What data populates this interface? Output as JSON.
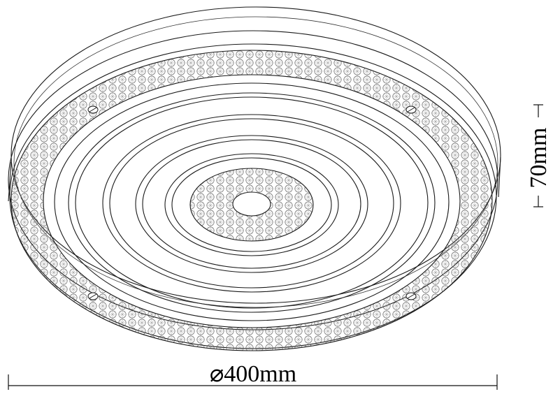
{
  "diagram": {
    "diameter_label": "⌀400mm",
    "height_label": "70mm"
  },
  "colors": {
    "line": "#1a1a1a",
    "background": "#ffffff"
  }
}
